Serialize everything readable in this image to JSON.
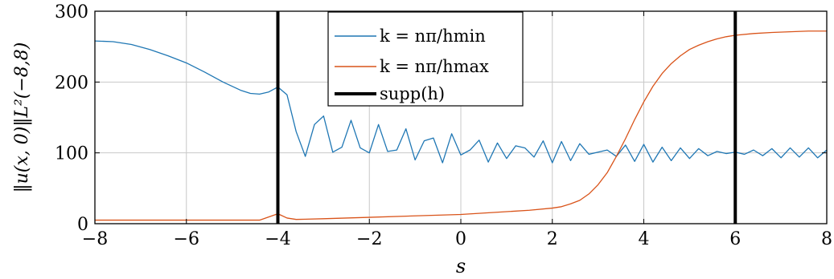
{
  "chart_data": {
    "type": "line",
    "title": "",
    "xlabel": "s",
    "ylabel": "‖u(x, 0)‖L²(−8,8)",
    "xlim": [
      -8,
      8
    ],
    "ylim": [
      0,
      300
    ],
    "xticks": [
      -8,
      -6,
      -4,
      -2,
      0,
      2,
      4,
      6,
      8
    ],
    "xtick_labels": [
      "−8",
      "−6",
      "−4",
      "−2",
      "0",
      "2",
      "4",
      "6",
      "8"
    ],
    "yticks": [
      0,
      100,
      200,
      300
    ],
    "ytick_labels": [
      "0",
      "100",
      "200",
      "300"
    ],
    "grid": true,
    "legend_position": "top-center",
    "series": [
      {
        "name": "k = nπ/hmin",
        "color": "#1f77b4",
        "x": [
          -8,
          -7.6,
          -7.2,
          -6.8,
          -6.4,
          -6.0,
          -5.6,
          -5.2,
          -4.8,
          -4.6,
          -4.4,
          -4.2,
          -4.0,
          -3.8,
          -3.6,
          -3.4,
          -3.2,
          -3.0,
          -2.8,
          -2.6,
          -2.4,
          -2.2,
          -2.0,
          -1.8,
          -1.6,
          -1.4,
          -1.2,
          -1.0,
          -0.8,
          -0.6,
          -0.4,
          -0.2,
          0.0,
          0.2,
          0.4,
          0.6,
          0.8,
          1.0,
          1.2,
          1.4,
          1.6,
          1.8,
          2.0,
          2.2,
          2.4,
          2.6,
          2.8,
          3.0,
          3.2,
          3.4,
          3.6,
          3.8,
          4.0,
          4.2,
          4.4,
          4.6,
          4.8,
          5.0,
          5.2,
          5.4,
          5.6,
          5.8,
          6.0,
          6.2,
          6.4,
          6.6,
          6.8,
          7.0,
          7.2,
          7.4,
          7.6,
          7.8,
          8.0
        ],
        "y": [
          258,
          257,
          253,
          246,
          237,
          227,
          214,
          200,
          188,
          184,
          183,
          186,
          193,
          182,
          130,
          95,
          140,
          152,
          101,
          108,
          146,
          107,
          100,
          140,
          102,
          104,
          134,
          90,
          117,
          121,
          86,
          127,
          97,
          104,
          118,
          87,
          114,
          92,
          110,
          107,
          94,
          117,
          86,
          116,
          89,
          113,
          98,
          101,
          104,
          95,
          111,
          88,
          112,
          87,
          108,
          89,
          107,
          92,
          106,
          96,
          102,
          99,
          101,
          98,
          104,
          96,
          106,
          93,
          107,
          94,
          107,
          93,
          104
        ]
      },
      {
        "name": "k = nπ/hmax",
        "color": "#d95319",
        "x": [
          -8,
          -4.4,
          -4.0,
          -3.8,
          -3.6,
          -3.0,
          -2.0,
          -1.0,
          0.0,
          0.5,
          1.0,
          1.5,
          2.0,
          2.2,
          2.4,
          2.6,
          2.8,
          3.0,
          3.2,
          3.4,
          3.6,
          3.8,
          4.0,
          4.2,
          4.4,
          4.6,
          4.8,
          5.0,
          5.2,
          5.4,
          5.6,
          5.8,
          6.0,
          6.4,
          6.8,
          7.2,
          7.6,
          8.0
        ],
        "y": [
          5,
          5,
          14,
          8,
          6,
          7,
          9,
          11,
          13,
          15,
          17,
          19,
          22,
          24,
          28,
          33,
          42,
          55,
          72,
          95,
          120,
          147,
          172,
          194,
          212,
          226,
          237,
          246,
          252,
          257,
          261,
          264,
          266,
          268.5,
          270,
          271,
          272,
          272
        ]
      },
      {
        "name": "supp(h)",
        "color": "#000000",
        "vlines": [
          -4,
          6
        ]
      }
    ]
  },
  "legend": {
    "entries": [
      "k = nπ/hmin",
      "k = nπ/hmax",
      "supp(h)"
    ]
  }
}
